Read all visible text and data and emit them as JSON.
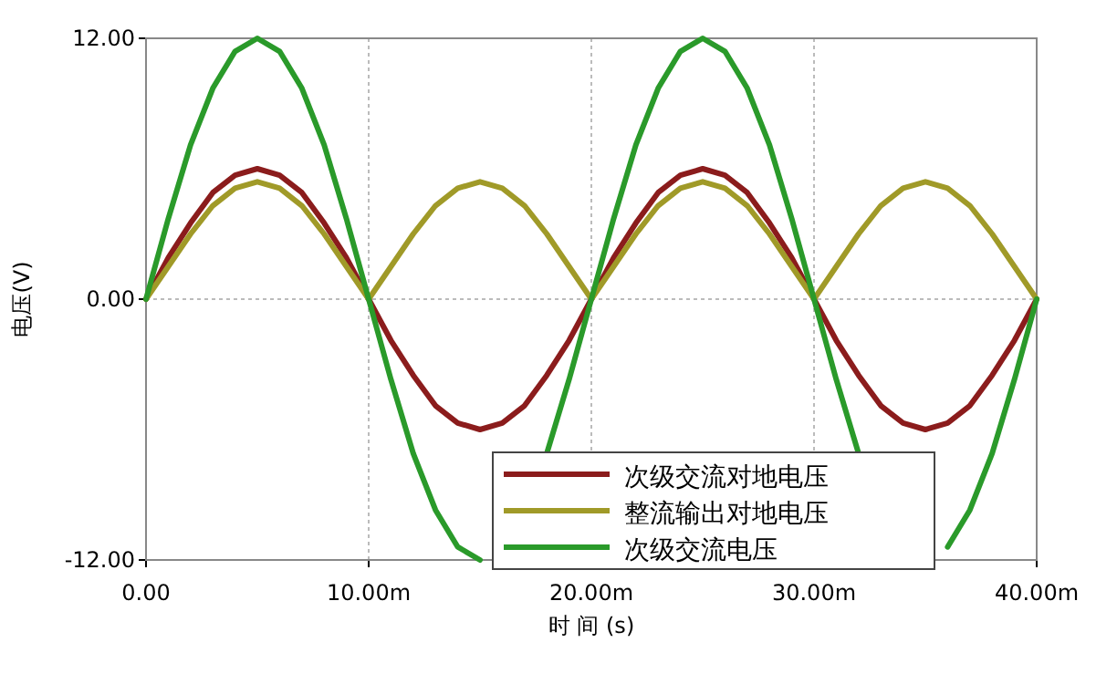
{
  "chart_data": {
    "type": "line",
    "xlabel": "时 间 (s)",
    "ylabel": "电压(V)",
    "x": [
      0,
      1,
      2,
      3,
      4,
      5,
      6,
      7,
      8,
      9,
      10,
      11,
      12,
      13,
      14,
      15,
      16,
      17,
      18,
      19,
      20,
      21,
      22,
      23,
      24,
      25,
      26,
      27,
      28,
      29,
      30,
      31,
      32,
      33,
      34,
      35,
      36,
      37,
      38,
      39,
      40
    ],
    "series": [
      {
        "name": "次级交流对地电压",
        "color": "#8b1c1c",
        "values": [
          0,
          1.9,
          3.5,
          4.9,
          5.7,
          6.0,
          5.7,
          4.9,
          3.5,
          1.9,
          0,
          -1.9,
          -3.5,
          -4.9,
          -5.7,
          -6.0,
          -5.7,
          -4.9,
          -3.5,
          -1.9,
          0,
          1.9,
          3.5,
          4.9,
          5.7,
          6.0,
          5.7,
          4.9,
          3.5,
          1.9,
          0,
          -1.9,
          -3.5,
          -4.9,
          -5.7,
          -6.0,
          -5.7,
          -4.9,
          -3.5,
          -1.9,
          0
        ]
      },
      {
        "name": "整流输出对地电压",
        "color": "#a09a28",
        "values": [
          0,
          1.5,
          3.0,
          4.3,
          5.1,
          5.4,
          5.1,
          4.3,
          3.0,
          1.5,
          0,
          1.5,
          3.0,
          4.3,
          5.1,
          5.4,
          5.1,
          4.3,
          3.0,
          1.5,
          0,
          1.5,
          3.0,
          4.3,
          5.1,
          5.4,
          5.1,
          4.3,
          3.0,
          1.5,
          0,
          1.5,
          3.0,
          4.3,
          5.1,
          5.4,
          5.1,
          4.3,
          3.0,
          1.5,
          0
        ]
      },
      {
        "name": "次级交流电压",
        "color": "#2a9a2a",
        "values": [
          0,
          3.7,
          7.1,
          9.7,
          11.4,
          12.0,
          11.4,
          9.7,
          7.1,
          3.7,
          0,
          -3.7,
          -7.1,
          -9.7,
          -11.4,
          -12.0,
          null,
          null,
          -7.1,
          -3.7,
          0,
          3.7,
          7.1,
          9.7,
          11.4,
          12.0,
          11.4,
          9.7,
          7.1,
          3.7,
          0,
          -3.7,
          -7.1,
          null,
          null,
          null,
          -11.4,
          -9.7,
          -7.1,
          -3.7,
          0
        ]
      }
    ],
    "xlim": [
      0,
      40
    ],
    "ylim": [
      -12,
      12
    ],
    "xticks": [
      {
        "value": 0,
        "label": "0.00"
      },
      {
        "value": 10,
        "label": "10.00m"
      },
      {
        "value": 20,
        "label": "20.00m"
      },
      {
        "value": 30,
        "label": "30.00m"
      },
      {
        "value": 40,
        "label": "40.00m"
      }
    ],
    "yticks": [
      {
        "value": -12,
        "label": "-12.00"
      },
      {
        "value": 0,
        "label": "0.00"
      },
      {
        "value": 12,
        "label": "12.00"
      }
    ],
    "grid": true,
    "legend": "bottom right",
    "marker": "none",
    "line_style": "solid"
  }
}
